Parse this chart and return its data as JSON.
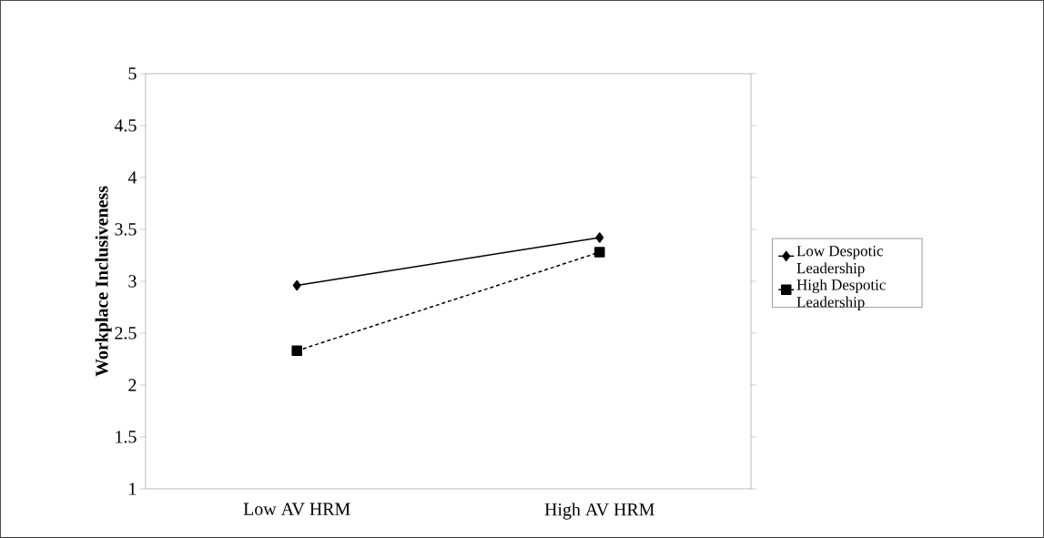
{
  "chart_data": {
    "type": "line",
    "ylabel": "Workplace Inclusiveness",
    "categories": [
      "Low AV HRM",
      "High AV HRM"
    ],
    "ylim": [
      1,
      5
    ],
    "yticks": [
      1,
      1.5,
      2,
      2.5,
      3,
      3.5,
      4,
      4.5,
      5
    ],
    "legend": "right",
    "grid": false,
    "series": [
      {
        "name": "Low Despotic Leadership",
        "color": "#000000",
        "values": [
          2.96,
          3.42
        ],
        "marker": "diamond",
        "line_style": "solid"
      },
      {
        "name": "High Despotic Leadership",
        "color": "#000000",
        "values": [
          2.33,
          3.28
        ],
        "marker": "square",
        "line_style": "dashed"
      }
    ]
  }
}
